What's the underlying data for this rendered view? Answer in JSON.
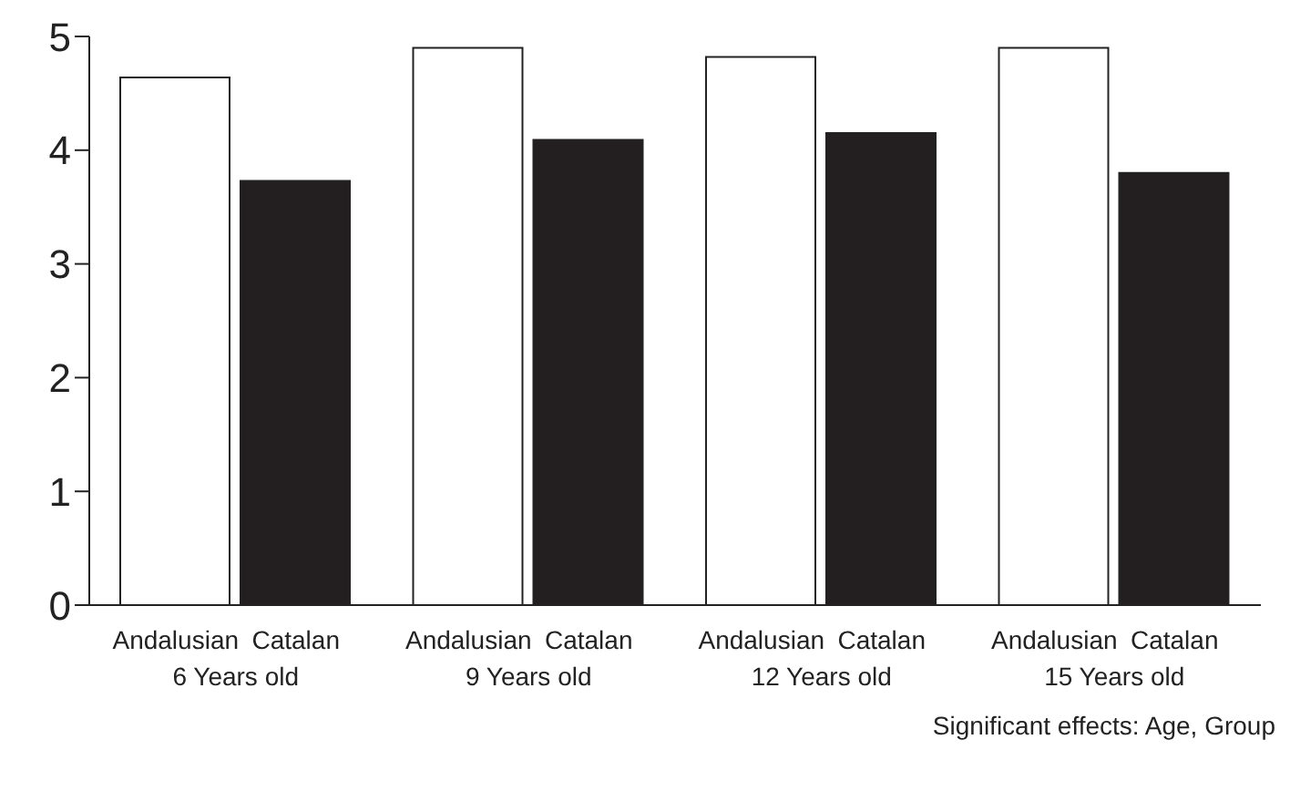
{
  "chart_data": {
    "type": "bar",
    "categories": [
      "6 Years old",
      "9 Years old",
      "12 Years old",
      "15 Years old"
    ],
    "series": [
      {
        "name": "Andalusian",
        "color": "#ffffff",
        "values": [
          4.64,
          4.9,
          4.82,
          4.9
        ]
      },
      {
        "name": "Catalan",
        "color": "#231f20",
        "values": [
          3.73,
          4.09,
          4.15,
          3.8
        ]
      }
    ],
    "ylim": [
      0,
      5
    ],
    "yticks": [
      0,
      1,
      2,
      3,
      4,
      5
    ],
    "grid": false,
    "legend": false,
    "annotations": [
      "Significant effects: Age, Group"
    ]
  }
}
